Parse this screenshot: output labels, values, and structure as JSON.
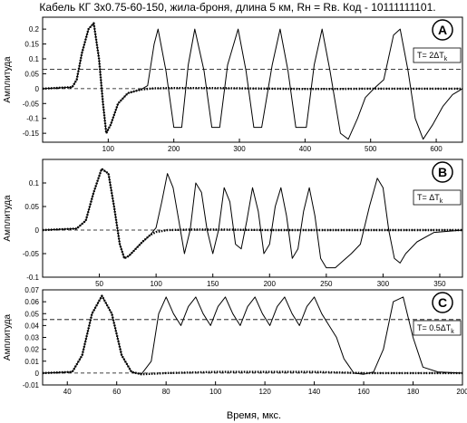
{
  "figure": {
    "title": "Кабель КГ 3x0.75-60-150, жила-броня, длина 5 км, Rн = Rв. Код - 10111111101.",
    "xlabel": "Время, мкс."
  },
  "chart_data": [
    {
      "type": "line",
      "panel_label": "A",
      "annotation": "T= 2ΔT",
      "annotation_sub": "k",
      "ylabel": "Амплитуда",
      "xlim": [
        0,
        640
      ],
      "ylim": [
        -0.18,
        0.24
      ],
      "x_ticks": [
        100,
        200,
        300,
        400,
        500,
        600
      ],
      "y_ticks": [
        -0.15,
        -0.1,
        -0.05,
        0,
        0.05,
        0.1,
        0.15,
        0.2
      ],
      "y_tick_labels": [
        "-0.15",
        "-0.1",
        "-0.05",
        "0",
        "0.05",
        "0.1",
        "0.15",
        "0.2"
      ],
      "threshold": 0.065,
      "series": [
        {
          "style": "solid",
          "x": [
            0,
            45,
            52,
            60,
            70,
            78,
            86,
            92,
            97,
            104,
            115,
            130,
            150,
            160,
            170,
            176,
            188,
            200,
            212,
            222,
            232,
            246,
            258,
            270,
            282,
            298,
            310,
            322,
            334,
            350,
            362,
            374,
            386,
            402,
            414,
            426,
            438,
            454,
            466,
            480,
            492,
            505,
            520,
            535,
            545,
            557,
            568,
            580,
            595,
            610,
            625,
            640
          ],
          "y": [
            0,
            0.005,
            0.03,
            0.12,
            0.2,
            0.22,
            0.1,
            -0.05,
            -0.15,
            -0.12,
            -0.05,
            -0.015,
            -0.003,
            0.01,
            0.15,
            0.2,
            0.06,
            -0.13,
            -0.13,
            0.08,
            0.2,
            0.06,
            -0.13,
            -0.13,
            0.08,
            0.2,
            0.06,
            -0.13,
            -0.13,
            0.08,
            0.2,
            0.06,
            -0.13,
            -0.13,
            0.08,
            0.2,
            0.06,
            -0.15,
            -0.17,
            -0.1,
            -0.03,
            0.0,
            0.03,
            0.18,
            0.2,
            0.06,
            -0.1,
            -0.17,
            -0.12,
            -0.06,
            -0.02,
            0.0
          ]
        },
        {
          "style": "dotted",
          "x": [
            0,
            45,
            52,
            60,
            70,
            78,
            86,
            92,
            97,
            104,
            115,
            130,
            150,
            170,
            200,
            250,
            300,
            350,
            400,
            450,
            500,
            520,
            540,
            560,
            600,
            640
          ],
          "y": [
            0,
            0.005,
            0.03,
            0.12,
            0.2,
            0.22,
            0.1,
            -0.05,
            -0.15,
            -0.12,
            -0.05,
            -0.015,
            -0.003,
            0.001,
            0.002,
            0.002,
            0.001,
            0.0,
            -0.001,
            -0.001,
            0.0,
            0.0,
            0.0,
            0.0,
            0.0,
            0.0
          ]
        }
      ]
    },
    {
      "type": "line",
      "panel_label": "B",
      "annotation": "T= ΔT",
      "annotation_sub": "k",
      "ylabel": "Амплитуда",
      "xlim": [
        0,
        370
      ],
      "ylim": [
        -0.1,
        0.15
      ],
      "x_ticks": [
        50,
        100,
        150,
        200,
        250,
        300,
        350
      ],
      "y_ticks": [
        -0.1,
        -0.05,
        0,
        0.05,
        0.1
      ],
      "y_tick_labels": [
        "-0.1",
        "-0.05",
        "0",
        "0.05",
        "0.1"
      ],
      "threshold": null,
      "series": [
        {
          "style": "solid",
          "x": [
            0,
            30,
            38,
            45,
            52,
            58,
            63,
            68,
            72,
            76,
            80,
            88,
            95,
            100,
            105,
            110,
            115,
            120,
            125,
            130,
            135,
            140,
            145,
            150,
            155,
            160,
            165,
            170,
            175,
            180,
            185,
            190,
            195,
            200,
            205,
            210,
            215,
            220,
            225,
            230,
            235,
            240,
            245,
            250,
            258,
            265,
            272,
            280,
            288,
            295,
            300,
            305,
            310,
            315,
            320,
            330,
            345,
            370
          ],
          "y": [
            0,
            0.003,
            0.02,
            0.08,
            0.13,
            0.12,
            0.05,
            -0.03,
            -0.06,
            -0.055,
            -0.045,
            -0.025,
            -0.01,
            0.005,
            0.06,
            0.12,
            0.09,
            0.02,
            -0.05,
            0.0,
            0.1,
            0.08,
            0.0,
            -0.05,
            0.0,
            0.09,
            0.06,
            -0.03,
            -0.04,
            0.02,
            0.09,
            0.04,
            -0.05,
            -0.03,
            0.05,
            0.09,
            0.03,
            -0.06,
            -0.04,
            0.04,
            0.09,
            0.03,
            -0.06,
            -0.08,
            -0.08,
            -0.065,
            -0.05,
            -0.03,
            0.05,
            0.11,
            0.09,
            0.0,
            -0.06,
            -0.07,
            -0.05,
            -0.025,
            -0.005,
            0.0
          ]
        },
        {
          "style": "dotted",
          "x": [
            0,
            30,
            38,
            45,
            52,
            58,
            63,
            68,
            72,
            76,
            80,
            88,
            95,
            100,
            110,
            130,
            160,
            200,
            240,
            280,
            290,
            300,
            310,
            330,
            370
          ],
          "y": [
            0,
            0.003,
            0.02,
            0.08,
            0.13,
            0.12,
            0.05,
            -0.03,
            -0.06,
            -0.055,
            -0.045,
            -0.025,
            -0.01,
            -0.004,
            0.0,
            0.001,
            0.001,
            0.0,
            0.0,
            0.0,
            0.0,
            0.0,
            0.0,
            0.0,
            0.0
          ]
        }
      ]
    },
    {
      "type": "line",
      "panel_label": "C",
      "annotation": "T= 0.5ΔT",
      "annotation_sub": "k",
      "ylabel": "Амплитуда",
      "xlim": [
        30,
        200
      ],
      "ylim": [
        -0.01,
        0.07
      ],
      "x_ticks": [
        40,
        60,
        80,
        100,
        120,
        140,
        160,
        180,
        200
      ],
      "y_ticks": [
        -0.01,
        0,
        0.01,
        0.02,
        0.03,
        0.04,
        0.05,
        0.06,
        0.07
      ],
      "y_tick_labels": [
        "-0.01",
        "0",
        "0.01",
        "0.02",
        "0.03",
        "0.04",
        "0.05",
        "0.06",
        "0.07"
      ],
      "threshold": 0.045,
      "series": [
        {
          "style": "solid",
          "x": [
            30,
            42,
            46,
            50,
            54,
            58,
            62,
            66,
            70,
            74,
            77,
            80,
            83,
            86,
            89,
            92,
            95,
            98,
            101,
            104,
            107,
            110,
            113,
            116,
            119,
            122,
            125,
            128,
            131,
            134,
            137,
            140,
            143,
            146,
            149,
            152,
            156,
            160,
            164,
            168,
            172,
            176,
            180,
            184,
            190,
            200
          ],
          "y": [
            0,
            0.001,
            0.015,
            0.05,
            0.065,
            0.05,
            0.015,
            0.001,
            -0.001,
            0.01,
            0.05,
            0.064,
            0.05,
            0.04,
            0.056,
            0.064,
            0.05,
            0.04,
            0.056,
            0.064,
            0.05,
            0.04,
            0.056,
            0.064,
            0.05,
            0.04,
            0.056,
            0.064,
            0.05,
            0.04,
            0.056,
            0.064,
            0.05,
            0.04,
            0.03,
            0.012,
            0.0,
            -0.001,
            0.001,
            0.02,
            0.06,
            0.064,
            0.03,
            0.005,
            0.001,
            0.0
          ]
        },
        {
          "style": "dotted",
          "x": [
            30,
            42,
            46,
            50,
            54,
            58,
            62,
            66,
            70,
            80,
            100,
            120,
            140,
            160,
            180,
            200
          ],
          "y": [
            0,
            0.001,
            0.015,
            0.05,
            0.065,
            0.05,
            0.015,
            0.001,
            -0.001,
            0.0,
            0.001,
            0.001,
            0.001,
            0.0,
            0.0,
            0.0
          ]
        }
      ]
    }
  ]
}
